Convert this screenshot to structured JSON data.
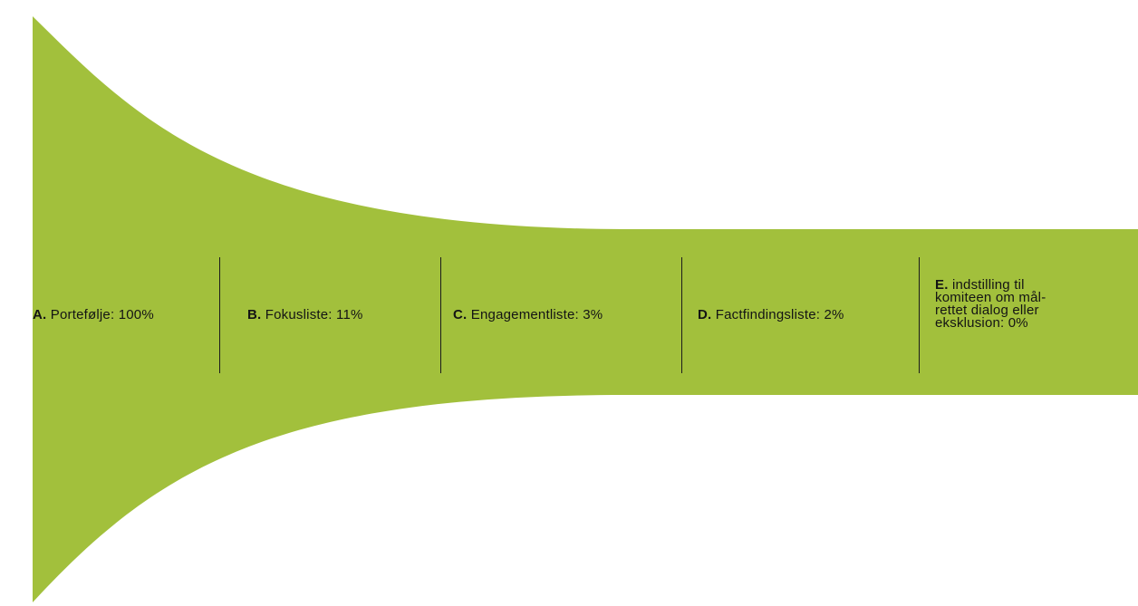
{
  "diagram": {
    "type": "funnel",
    "fill_color": "#a2c03c",
    "stages": [
      {
        "letter": "A.",
        "text": "Portefølje: 100%"
      },
      {
        "letter": "B.",
        "text": "Fokusliste: 11%"
      },
      {
        "letter": "C.",
        "text": "Engagementliste: 3%"
      },
      {
        "letter": "D.",
        "text": "Factfindingsliste: 2%"
      },
      {
        "letter": "E.",
        "text": "indstilling til\nkomiteen om mål-\nrettet dialog eller\neksklusion: 0%"
      }
    ]
  }
}
